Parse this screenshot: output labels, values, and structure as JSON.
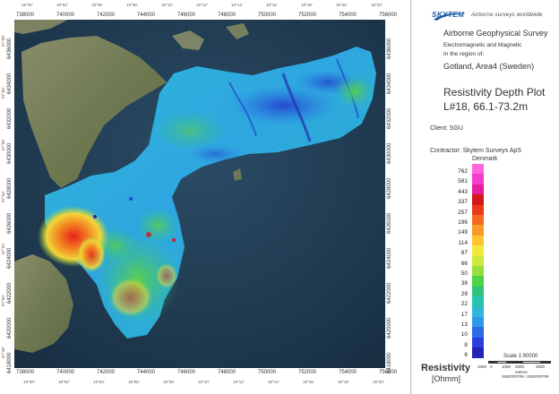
{
  "header": {
    "logo_text": "SKYTEM",
    "tagline": "Airborne surveys worldwide"
  },
  "survey": {
    "title": "Airborne Geophysical Survey",
    "subtitle_line1": "Electromagnetic and Magnetic",
    "subtitle_line2": "In the region of:",
    "region": "Gotland, Area4 (Sweden)",
    "plot_title": "Resistivity Depth Plot",
    "plot_line": "L#18, 66.1-73.2m",
    "client_label": "Client: SGU",
    "contractor_line1": "Contractor: Skytem Surveys ApS",
    "contractor_line2": "Denmark"
  },
  "colorbar": {
    "title": "Resistivity",
    "unit": "[Ohmm]",
    "labels": [
      "762",
      "581",
      "443",
      "337",
      "257",
      "196",
      "149",
      "114",
      "87",
      "66",
      "50",
      "38",
      "29",
      "22",
      "17",
      "13",
      "10",
      "8",
      "6"
    ],
    "colors": [
      "#ff66dd",
      "#f43ccf",
      "#e11f9f",
      "#d61818",
      "#ea3a1a",
      "#f46a1f",
      "#fa9a26",
      "#ffc330",
      "#f5e83c",
      "#cfe83c",
      "#98de3c",
      "#4fd14a",
      "#2ec47a",
      "#27c4b0",
      "#2fb6d8",
      "#2d9ae8",
      "#2a6be8",
      "#2a3fdd",
      "#2323b8"
    ]
  },
  "scale": {
    "label": "Scale 1:90000",
    "ticks": [
      "1000",
      "0",
      "1000",
      "2000",
      "3000"
    ],
    "unit": "metres",
    "projection": "SWEREF99 / SWEREF99"
  },
  "axes": {
    "x_top_grid": [
      "738000",
      "740000",
      "742000",
      "744000",
      "746000",
      "748000",
      "750000",
      "752000",
      "754000",
      "756000"
    ],
    "x_top_deg": [
      "19°02'",
      "19°04'",
      "19°06'",
      "19°08'",
      "19°10'",
      "19°12'",
      "19°14'",
      "19°16'",
      "19°18'",
      "19°20'",
      "19°22'"
    ],
    "x_bottom_grid": [
      "738000",
      "740000",
      "742000",
      "744000",
      "746000",
      "748000",
      "750000",
      "752000",
      "754000",
      "756000"
    ],
    "x_bottom_deg": [
      "19°00'",
      "18°02'",
      "19°04'",
      "19°06'",
      "19°08'",
      "19°10'",
      "19°12'",
      "19°14'",
      "19°16'",
      "19°18'",
      "19°20'"
    ],
    "y_left_grid": [
      "6436000",
      "6434000",
      "6432000",
      "6430000",
      "6428000",
      "6426000",
      "6424000",
      "6422000",
      "6420000",
      "6418000"
    ],
    "y_left_deg": [
      "57°00'",
      "57°58'",
      "57°56'",
      "57°54'",
      "57°52'",
      "57°50'",
      "57°48'"
    ],
    "y_right_grid": [
      "6436000",
      "6434000",
      "6432000",
      "6430000",
      "6428000",
      "6426000",
      "6424000",
      "6422000",
      "6420000",
      "6418000"
    ]
  }
}
